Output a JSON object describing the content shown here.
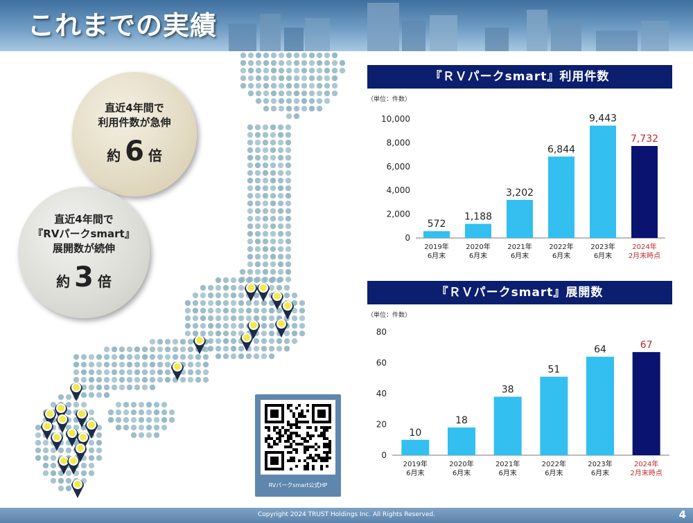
{
  "page": {
    "title": "これまでの実績",
    "copyright": "Copyright 2024 TRUST Holdings Inc. All Rights Reserved.",
    "page_number": "4"
  },
  "colors": {
    "bar": "#33bff0",
    "bar_highlight": "#0b1370",
    "header_bg": "#0b1f6e",
    "highlight_label": "#c0282d",
    "map_dot": "#8fb3c2",
    "pin": "#1d2b4a",
    "pin_fill": "#f1ea4a"
  },
  "highlights": {
    "usage": {
      "lines": [
        "直近4年間で",
        "利用件数が急伸"
      ],
      "prefix": "約",
      "value": "6",
      "suffix": "倍"
    },
    "sites": {
      "lines": [
        "直近4年間で",
        "『RVパークsmart』",
        "展開数が続伸"
      ],
      "prefix": "約",
      "value": "3",
      "suffix": "倍"
    }
  },
  "qr": {
    "caption": "RVパークsmart公式HP"
  },
  "chart_data": [
    {
      "type": "bar",
      "title": "『ＲＶパークsmart』利用件数",
      "unit_label": "（単位：件数）",
      "categories": [
        [
          "2019年",
          "6月末"
        ],
        [
          "2020年",
          "6月末"
        ],
        [
          "2021年",
          "6月末"
        ],
        [
          "2022年",
          "6月末"
        ],
        [
          "2023年",
          "6月末"
        ],
        [
          "2024年",
          "2月末時点"
        ]
      ],
      "values": [
        572,
        1188,
        3202,
        6844,
        9443,
        7732
      ],
      "value_labels": [
        "572",
        "1,188",
        "3,202",
        "6,844",
        "9,443",
        "7,732"
      ],
      "ylim": [
        0,
        10000
      ],
      "yticks": [
        0,
        2000,
        4000,
        6000,
        8000,
        10000
      ],
      "ytick_labels": [
        "0",
        "2,000",
        "4,000",
        "6,000",
        "8,000",
        "10,000"
      ],
      "highlight_index": 5,
      "grid": false
    },
    {
      "type": "bar",
      "title": "『ＲＶパークsmart』展開数",
      "unit_label": "（単位：件数）",
      "categories": [
        [
          "2019年",
          "6月末"
        ],
        [
          "2020年",
          "6月末"
        ],
        [
          "2021年",
          "6月末"
        ],
        [
          "2022年",
          "6月末"
        ],
        [
          "2023年",
          "6月末"
        ],
        [
          "2024年",
          "2月末時点"
        ]
      ],
      "values": [
        10,
        18,
        38,
        51,
        64,
        67
      ],
      "value_labels": [
        "10",
        "18",
        "38",
        "51",
        "64",
        "67"
      ],
      "ylim": [
        0,
        80
      ],
      "yticks": [
        0,
        20,
        40,
        60,
        80
      ],
      "ytick_labels": [
        "0",
        "20",
        "40",
        "60",
        "80"
      ],
      "highlight_index": 5,
      "grid": false
    }
  ]
}
